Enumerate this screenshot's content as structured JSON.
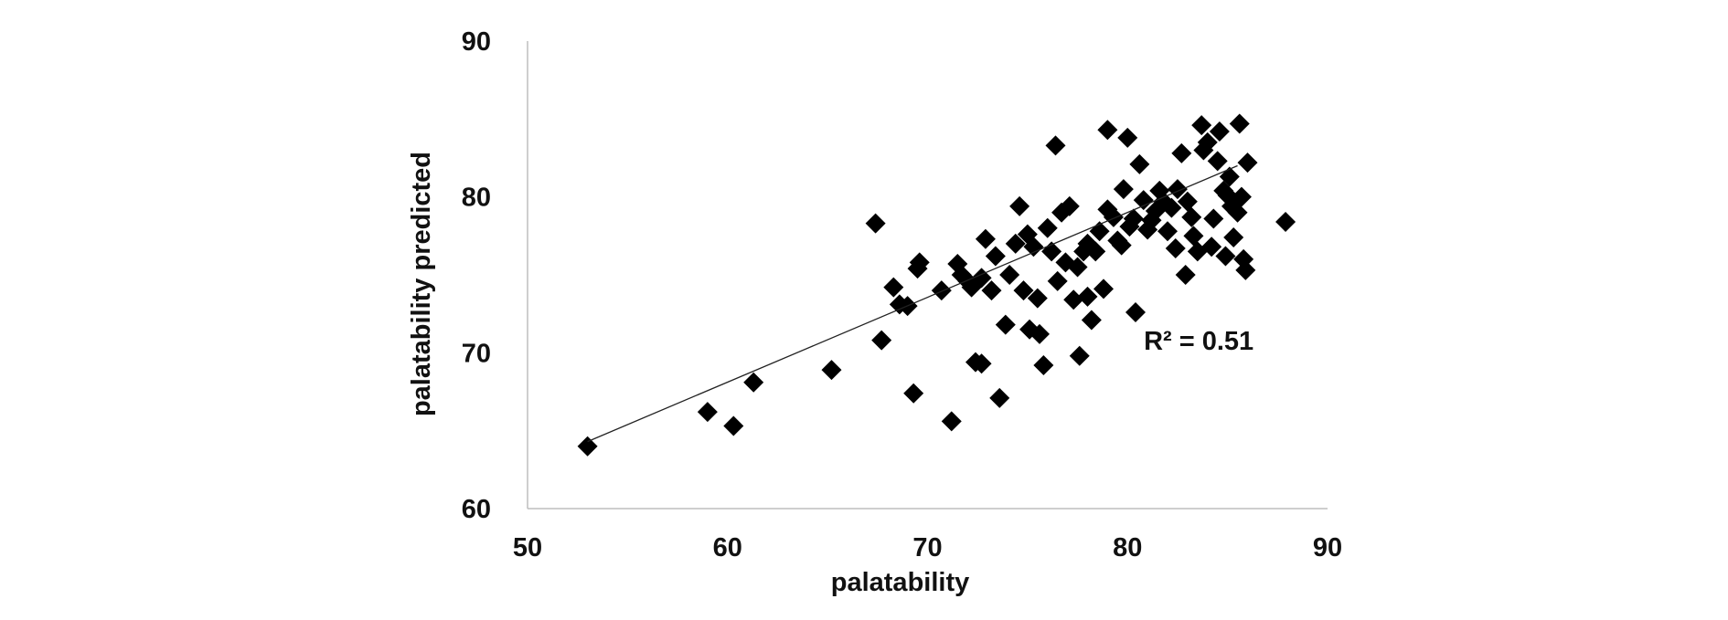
{
  "chart_data": {
    "type": "scatter",
    "title": "",
    "xlabel": "palatability",
    "ylabel": "palatability predicted",
    "xlim": [
      50,
      90
    ],
    "ylim": [
      60,
      90
    ],
    "xticks": [
      "50",
      "60",
      "70",
      "80",
      "90"
    ],
    "yticks": [
      "60",
      "70",
      "80",
      "90"
    ],
    "grid": false,
    "legend": "none",
    "marker": "diamond",
    "marker_color": "#000000",
    "trendline": {
      "type": "linear",
      "color": "#222222",
      "start": [
        53,
        64.3
      ],
      "end": [
        85.5,
        82
      ]
    },
    "annotation": "R² = 0.51",
    "annotation_pos": [
      81.5,
      70.2
    ],
    "series": [
      {
        "points": [
          [
            53,
            64
          ],
          [
            59,
            66.2
          ],
          [
            60.3,
            65.3
          ],
          [
            61.3,
            68.1
          ],
          [
            65.2,
            68.9
          ],
          [
            67.4,
            78.3
          ],
          [
            67.7,
            70.8
          ],
          [
            68.3,
            74.2
          ],
          [
            68.6,
            73.1
          ],
          [
            69.0,
            73.0
          ],
          [
            69.3,
            67.4
          ],
          [
            69.5,
            75.4
          ],
          [
            69.6,
            75.8
          ],
          [
            70.7,
            74.0
          ],
          [
            71.2,
            65.6
          ],
          [
            71.5,
            75.7
          ],
          [
            71.7,
            75.0
          ],
          [
            72.0,
            74.6
          ],
          [
            72.2,
            74.2
          ],
          [
            72.4,
            69.4
          ],
          [
            72.7,
            74.8
          ],
          [
            72.7,
            69.3
          ],
          [
            72.9,
            77.3
          ],
          [
            73.2,
            74.0
          ],
          [
            73.4,
            76.2
          ],
          [
            73.6,
            67.1
          ],
          [
            73.9,
            71.8
          ],
          [
            74.1,
            75.0
          ],
          [
            74.4,
            77.0
          ],
          [
            74.6,
            79.4
          ],
          [
            74.8,
            74.0
          ],
          [
            75.0,
            77.6
          ],
          [
            75.1,
            71.5
          ],
          [
            75.3,
            76.8
          ],
          [
            75.5,
            73.5
          ],
          [
            75.6,
            71.2
          ],
          [
            75.8,
            69.2
          ],
          [
            76.0,
            78.0
          ],
          [
            76.2,
            76.5
          ],
          [
            76.4,
            83.3
          ],
          [
            76.5,
            74.6
          ],
          [
            76.7,
            79.0
          ],
          [
            76.9,
            75.8
          ],
          [
            77.1,
            79.4
          ],
          [
            77.3,
            73.4
          ],
          [
            77.5,
            75.5
          ],
          [
            77.6,
            69.8
          ],
          [
            77.8,
            76.5
          ],
          [
            78.0,
            77.0
          ],
          [
            78.0,
            73.6
          ],
          [
            78.2,
            72.1
          ],
          [
            78.4,
            76.5
          ],
          [
            78.6,
            77.8
          ],
          [
            78.8,
            74.1
          ],
          [
            79.0,
            84.3
          ],
          [
            79.0,
            79.2
          ],
          [
            79.3,
            78.7
          ],
          [
            79.5,
            77.2
          ],
          [
            79.7,
            76.9
          ],
          [
            79.8,
            80.5
          ],
          [
            80.0,
            83.8
          ],
          [
            80.1,
            78.1
          ],
          [
            80.3,
            78.6
          ],
          [
            80.4,
            72.6
          ],
          [
            80.6,
            82.1
          ],
          [
            80.8,
            79.8
          ],
          [
            81.0,
            77.9
          ],
          [
            81.2,
            78.5
          ],
          [
            81.4,
            79.1
          ],
          [
            81.6,
            80.4
          ],
          [
            81.8,
            79.7
          ],
          [
            82.0,
            77.8
          ],
          [
            82.2,
            79.3
          ],
          [
            82.4,
            76.7
          ],
          [
            82.5,
            80.5
          ],
          [
            82.7,
            82.8
          ],
          [
            82.9,
            75.0
          ],
          [
            83.0,
            79.7
          ],
          [
            83.2,
            78.7
          ],
          [
            83.3,
            77.5
          ],
          [
            83.5,
            76.5
          ],
          [
            83.7,
            84.6
          ],
          [
            83.8,
            83.0
          ],
          [
            84.0,
            83.5
          ],
          [
            84.2,
            76.8
          ],
          [
            84.3,
            78.6
          ],
          [
            84.5,
            82.3
          ],
          [
            84.6,
            84.2
          ],
          [
            84.8,
            80.4
          ],
          [
            84.9,
            76.2
          ],
          [
            85.0,
            80.1
          ],
          [
            85.1,
            81.3
          ],
          [
            85.2,
            79.4
          ],
          [
            85.3,
            77.4
          ],
          [
            85.5,
            79.0
          ],
          [
            85.6,
            84.7
          ],
          [
            85.7,
            80.0
          ],
          [
            85.8,
            76.0
          ],
          [
            85.9,
            75.3
          ],
          [
            86.0,
            82.2
          ],
          [
            87.9,
            78.4
          ]
        ]
      }
    ]
  }
}
